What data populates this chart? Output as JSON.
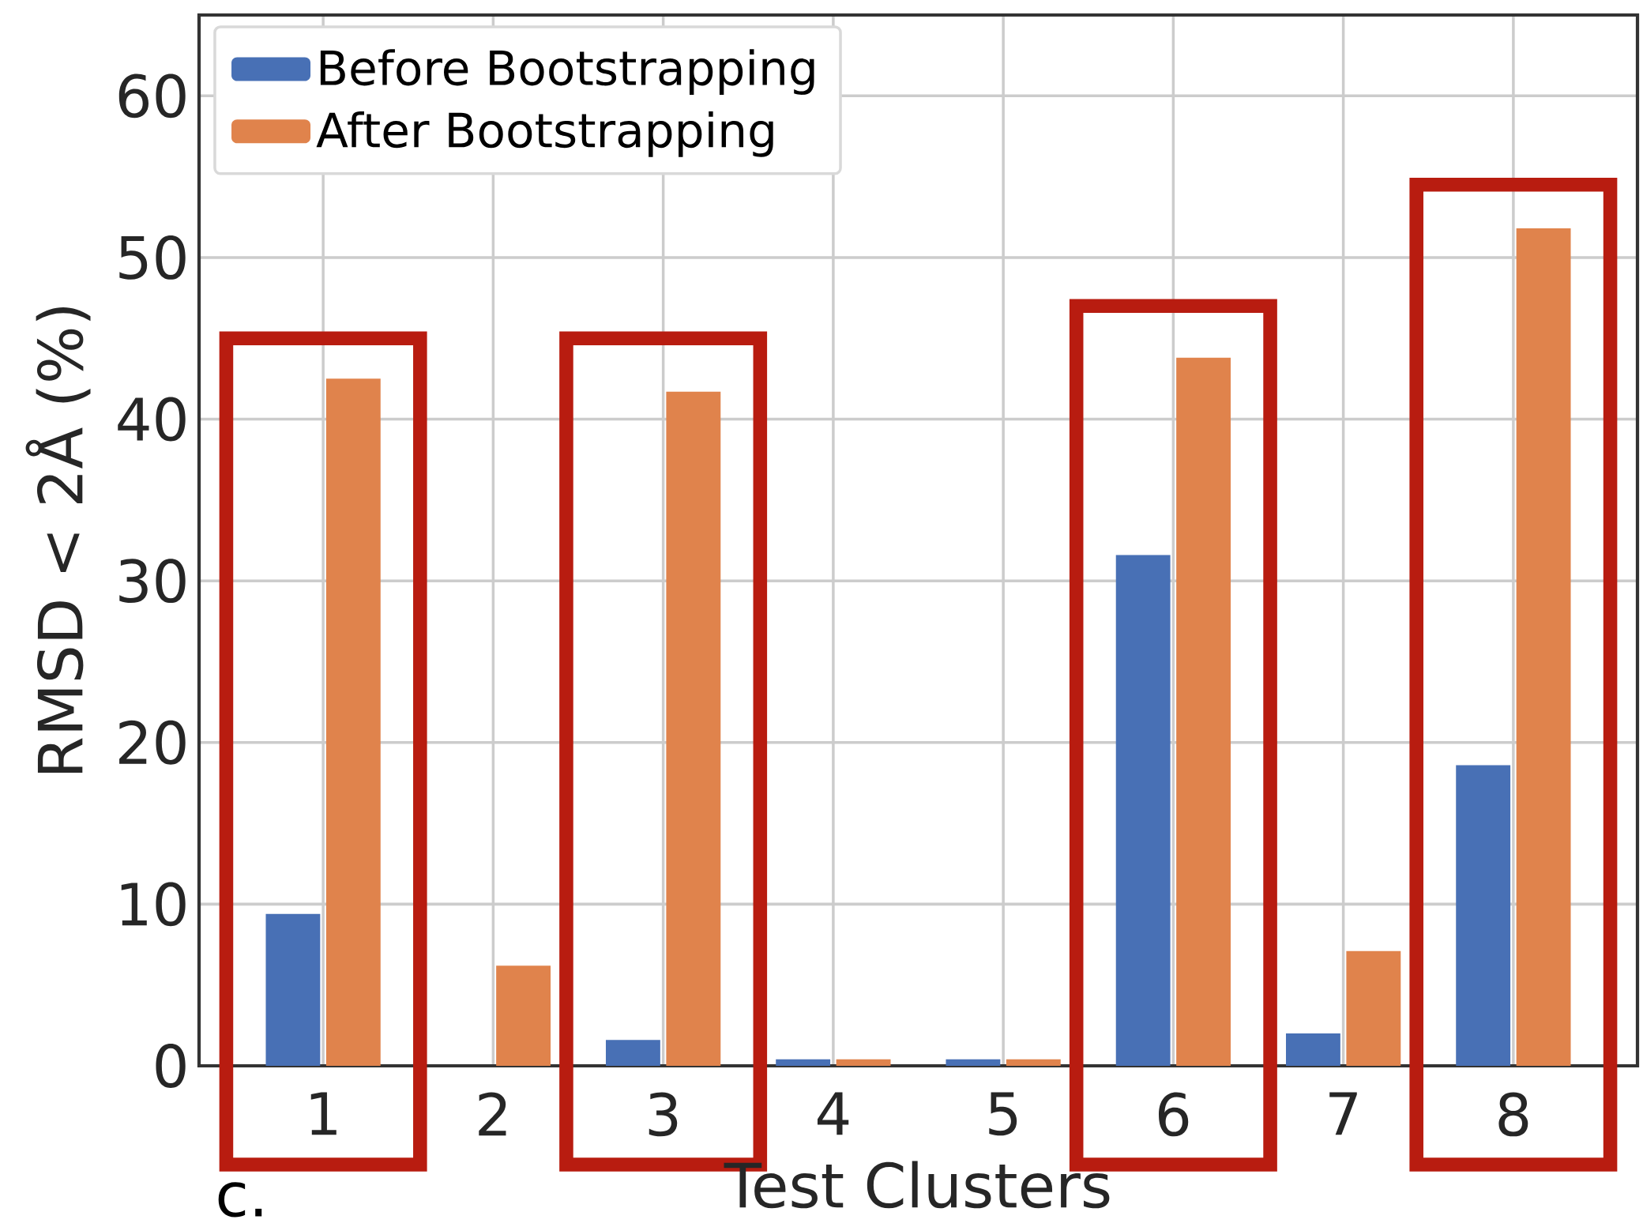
{
  "chart_data": {
    "type": "bar",
    "xlabel": "Test Clusters",
    "ylabel": "RMSD < 2Å (%)",
    "categories": [
      "1",
      "2",
      "3",
      "4",
      "5",
      "6",
      "7",
      "8"
    ],
    "series": [
      {
        "name": "Before Bootstrapping",
        "color": "#4870b5",
        "values": [
          9.4,
          0,
          1.6,
          0.4,
          0.4,
          31.6,
          2.0,
          18.6
        ]
      },
      {
        "name": "After Bootstrapping",
        "color": "#e0834c",
        "values": [
          42.5,
          6.2,
          41.7,
          0.4,
          0.4,
          43.8,
          7.1,
          51.8
        ]
      }
    ],
    "ylim": [
      0,
      65
    ],
    "yticks": [
      0,
      10,
      20,
      30,
      40,
      50,
      60
    ],
    "grid": true,
    "legend": "top left",
    "annotations": [
      "c."
    ]
  }
}
